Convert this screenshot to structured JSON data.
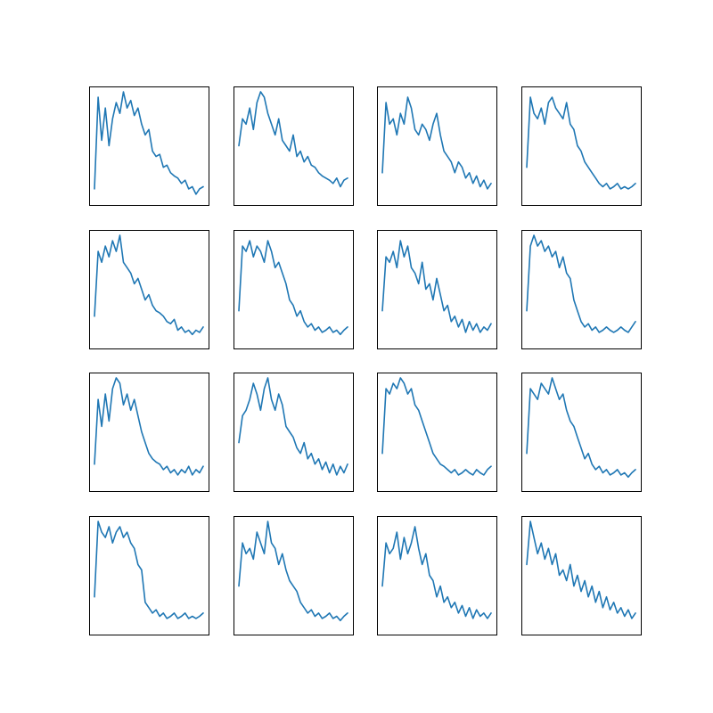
{
  "figure": {
    "background": "#ffffff",
    "line_color": "#1f77b4"
  },
  "chart_data": [
    {
      "type": "line",
      "x": [
        0,
        5,
        10,
        15,
        20,
        25,
        30,
        35,
        40,
        45,
        50,
        55,
        60,
        65,
        70,
        75,
        80,
        85,
        90,
        95,
        100,
        105,
        110,
        115,
        120,
        125,
        130,
        135,
        140,
        145,
        150
      ],
      "series": [
        {
          "values": [
            0.1,
            0.95,
            0.55,
            0.85,
            0.5,
            0.75,
            0.9,
            0.8,
            1.0,
            0.85,
            0.92,
            0.78,
            0.85,
            0.7,
            0.6,
            0.65,
            0.45,
            0.4,
            0.42,
            0.3,
            0.32,
            0.25,
            0.22,
            0.2,
            0.15,
            0.18,
            0.1,
            0.12,
            0.05,
            0.1,
            0.12
          ]
        }
      ],
      "xlim": [
        0,
        150
      ],
      "ylim": [
        0,
        1
      ],
      "grid": false
    },
    {
      "type": "line",
      "x": [
        0,
        5,
        10,
        15,
        20,
        25,
        30,
        35,
        40,
        45,
        50,
        55,
        60,
        65,
        70,
        75,
        80,
        85,
        90,
        95,
        100,
        105,
        110,
        115,
        120,
        125,
        130,
        135,
        140,
        145,
        150
      ],
      "series": [
        {
          "values": [
            0.5,
            0.75,
            0.7,
            0.85,
            0.65,
            0.9,
            1.0,
            0.95,
            0.8,
            0.7,
            0.6,
            0.75,
            0.55,
            0.5,
            0.45,
            0.6,
            0.4,
            0.45,
            0.35,
            0.4,
            0.32,
            0.3,
            0.25,
            0.22,
            0.2,
            0.18,
            0.15,
            0.2,
            0.12,
            0.18,
            0.2
          ]
        }
      ],
      "xlim": [
        0,
        150
      ],
      "ylim": [
        0,
        1
      ],
      "grid": false
    },
    {
      "type": "line",
      "x": [
        0,
        5,
        10,
        15,
        20,
        25,
        30,
        35,
        40,
        45,
        50,
        55,
        60,
        65,
        70,
        75,
        80,
        85,
        90,
        95,
        100,
        105,
        110,
        115,
        120,
        125,
        130,
        135,
        140,
        145,
        150
      ],
      "series": [
        {
          "values": [
            0.25,
            0.9,
            0.7,
            0.75,
            0.6,
            0.8,
            0.7,
            0.95,
            0.85,
            0.65,
            0.6,
            0.7,
            0.65,
            0.55,
            0.7,
            0.8,
            0.6,
            0.45,
            0.4,
            0.35,
            0.25,
            0.35,
            0.3,
            0.2,
            0.25,
            0.15,
            0.22,
            0.12,
            0.18,
            0.1,
            0.15
          ]
        }
      ],
      "xlim": [
        0,
        150
      ],
      "ylim": [
        0,
        1
      ],
      "grid": false
    },
    {
      "type": "line",
      "x": [
        0,
        5,
        10,
        15,
        20,
        25,
        30,
        35,
        40,
        45,
        50,
        55,
        60,
        65,
        70,
        75,
        80,
        85,
        90,
        95,
        100,
        105,
        110,
        115,
        120,
        125,
        130,
        135,
        140,
        145,
        150
      ],
      "series": [
        {
          "values": [
            0.3,
            0.95,
            0.8,
            0.75,
            0.85,
            0.7,
            0.9,
            0.95,
            0.85,
            0.8,
            0.75,
            0.9,
            0.7,
            0.65,
            0.5,
            0.45,
            0.35,
            0.3,
            0.25,
            0.2,
            0.15,
            0.12,
            0.15,
            0.1,
            0.12,
            0.15,
            0.1,
            0.12,
            0.1,
            0.12,
            0.15
          ]
        }
      ],
      "xlim": [
        0,
        150
      ],
      "ylim": [
        0,
        1
      ],
      "grid": false
    },
    {
      "type": "line",
      "x": [
        0,
        5,
        10,
        15,
        20,
        25,
        30,
        35,
        40,
        45,
        50,
        55,
        60,
        65,
        70,
        75,
        80,
        85,
        90,
        95,
        100,
        105,
        110,
        115,
        120,
        125,
        130,
        135,
        140,
        145,
        150
      ],
      "series": [
        {
          "values": [
            0.25,
            0.85,
            0.75,
            0.9,
            0.8,
            0.95,
            0.85,
            1.0,
            0.75,
            0.7,
            0.65,
            0.55,
            0.6,
            0.5,
            0.4,
            0.45,
            0.35,
            0.3,
            0.28,
            0.25,
            0.2,
            0.18,
            0.22,
            0.12,
            0.15,
            0.1,
            0.12,
            0.08,
            0.12,
            0.1,
            0.15
          ]
        }
      ],
      "xlim": [
        0,
        150
      ],
      "ylim": [
        0,
        1
      ],
      "grid": false
    },
    {
      "type": "line",
      "x": [
        0,
        5,
        10,
        15,
        20,
        25,
        30,
        35,
        40,
        45,
        50,
        55,
        60,
        65,
        70,
        75,
        80,
        85,
        90,
        95,
        100,
        105,
        110,
        115,
        120,
        125,
        130,
        135,
        140,
        145,
        150
      ],
      "series": [
        {
          "values": [
            0.3,
            0.9,
            0.85,
            0.95,
            0.8,
            0.9,
            0.85,
            0.75,
            0.95,
            0.85,
            0.7,
            0.75,
            0.65,
            0.55,
            0.4,
            0.35,
            0.25,
            0.3,
            0.2,
            0.15,
            0.18,
            0.12,
            0.15,
            0.1,
            0.12,
            0.15,
            0.1,
            0.12,
            0.08,
            0.12,
            0.15
          ]
        }
      ],
      "xlim": [
        0,
        150
      ],
      "ylim": [
        0,
        1
      ],
      "grid": false
    },
    {
      "type": "line",
      "x": [
        0,
        5,
        10,
        15,
        20,
        25,
        30,
        35,
        40,
        45,
        50,
        55,
        60,
        65,
        70,
        75,
        80,
        85,
        90,
        95,
        100,
        105,
        110,
        115,
        120,
        125,
        130,
        135,
        140,
        145,
        150
      ],
      "series": [
        {
          "values": [
            0.3,
            0.8,
            0.75,
            0.85,
            0.7,
            0.95,
            0.8,
            0.9,
            0.7,
            0.65,
            0.55,
            0.75,
            0.5,
            0.55,
            0.4,
            0.6,
            0.45,
            0.3,
            0.35,
            0.2,
            0.25,
            0.15,
            0.22,
            0.1,
            0.2,
            0.12,
            0.18,
            0.1,
            0.15,
            0.12,
            0.18
          ]
        }
      ],
      "xlim": [
        0,
        150
      ],
      "ylim": [
        0,
        1
      ],
      "grid": false
    },
    {
      "type": "line",
      "x": [
        0,
        5,
        10,
        15,
        20,
        25,
        30,
        35,
        40,
        45,
        50,
        55,
        60,
        65,
        70,
        75,
        80,
        85,
        90,
        95,
        100,
        105,
        110,
        115,
        120,
        125,
        130,
        135,
        140,
        145,
        150
      ],
      "series": [
        {
          "values": [
            0.3,
            0.9,
            1.0,
            0.9,
            0.95,
            0.85,
            0.9,
            0.8,
            0.85,
            0.7,
            0.8,
            0.65,
            0.6,
            0.4,
            0.3,
            0.2,
            0.15,
            0.18,
            0.12,
            0.15,
            0.1,
            0.12,
            0.15,
            0.12,
            0.1,
            0.12,
            0.15,
            0.12,
            0.1,
            0.15,
            0.2
          ]
        }
      ],
      "xlim": [
        0,
        150
      ],
      "ylim": [
        0,
        1
      ],
      "grid": false
    },
    {
      "type": "line",
      "x": [
        0,
        5,
        10,
        15,
        20,
        25,
        30,
        35,
        40,
        45,
        50,
        55,
        60,
        65,
        70,
        75,
        80,
        85,
        90,
        95,
        100,
        105,
        110,
        115,
        120,
        125,
        130,
        135,
        140,
        145,
        150
      ],
      "series": [
        {
          "values": [
            0.2,
            0.8,
            0.55,
            0.85,
            0.6,
            0.9,
            1.0,
            0.95,
            0.75,
            0.85,
            0.7,
            0.8,
            0.65,
            0.5,
            0.4,
            0.3,
            0.25,
            0.22,
            0.2,
            0.15,
            0.18,
            0.12,
            0.15,
            0.1,
            0.15,
            0.12,
            0.18,
            0.1,
            0.15,
            0.12,
            0.18
          ]
        }
      ],
      "xlim": [
        0,
        150
      ],
      "ylim": [
        0,
        1
      ],
      "grid": false
    },
    {
      "type": "line",
      "x": [
        0,
        5,
        10,
        15,
        20,
        25,
        30,
        35,
        40,
        45,
        50,
        55,
        60,
        65,
        70,
        75,
        80,
        85,
        90,
        95,
        100,
        105,
        110,
        115,
        120,
        125,
        130,
        135,
        140,
        145,
        150
      ],
      "series": [
        {
          "values": [
            0.4,
            0.65,
            0.7,
            0.8,
            0.95,
            0.85,
            0.7,
            0.9,
            1.0,
            0.8,
            0.7,
            0.85,
            0.75,
            0.55,
            0.5,
            0.45,
            0.35,
            0.3,
            0.4,
            0.25,
            0.3,
            0.2,
            0.25,
            0.15,
            0.22,
            0.12,
            0.2,
            0.1,
            0.18,
            0.12,
            0.2
          ]
        }
      ],
      "xlim": [
        0,
        150
      ],
      "ylim": [
        0,
        1
      ],
      "grid": false
    },
    {
      "type": "line",
      "x": [
        0,
        5,
        10,
        15,
        20,
        25,
        30,
        35,
        40,
        45,
        50,
        55,
        60,
        65,
        70,
        75,
        80,
        85,
        90,
        95,
        100,
        105,
        110,
        115,
        120,
        125,
        130,
        135,
        140,
        145,
        150
      ],
      "series": [
        {
          "values": [
            0.3,
            0.9,
            0.85,
            0.95,
            0.9,
            1.0,
            0.95,
            0.85,
            0.9,
            0.75,
            0.7,
            0.6,
            0.5,
            0.4,
            0.3,
            0.25,
            0.2,
            0.18,
            0.15,
            0.12,
            0.15,
            0.1,
            0.12,
            0.15,
            0.12,
            0.1,
            0.15,
            0.12,
            0.1,
            0.15,
            0.18
          ]
        }
      ],
      "xlim": [
        0,
        150
      ],
      "ylim": [
        0,
        1
      ],
      "grid": false
    },
    {
      "type": "line",
      "x": [
        0,
        5,
        10,
        15,
        20,
        25,
        30,
        35,
        40,
        45,
        50,
        55,
        60,
        65,
        70,
        75,
        80,
        85,
        90,
        95,
        100,
        105,
        110,
        115,
        120,
        125,
        130,
        135,
        140,
        145,
        150
      ],
      "series": [
        {
          "values": [
            0.3,
            0.9,
            0.85,
            0.8,
            0.95,
            0.9,
            0.85,
            1.0,
            0.9,
            0.8,
            0.85,
            0.7,
            0.6,
            0.55,
            0.45,
            0.35,
            0.25,
            0.3,
            0.2,
            0.15,
            0.18,
            0.12,
            0.15,
            0.1,
            0.12,
            0.15,
            0.1,
            0.12,
            0.08,
            0.12,
            0.15
          ]
        }
      ],
      "xlim": [
        0,
        150
      ],
      "ylim": [
        0,
        1
      ],
      "grid": false
    },
    {
      "type": "line",
      "x": [
        0,
        5,
        10,
        15,
        20,
        25,
        30,
        35,
        40,
        45,
        50,
        55,
        60,
        65,
        70,
        75,
        80,
        85,
        90,
        95,
        100,
        105,
        110,
        115,
        120,
        125,
        130,
        135,
        140,
        145,
        150
      ],
      "series": [
        {
          "values": [
            0.3,
            1.0,
            0.9,
            0.85,
            0.95,
            0.8,
            0.9,
            0.95,
            0.85,
            0.9,
            0.8,
            0.75,
            0.6,
            0.55,
            0.25,
            0.2,
            0.15,
            0.18,
            0.12,
            0.15,
            0.1,
            0.12,
            0.15,
            0.1,
            0.12,
            0.15,
            0.1,
            0.12,
            0.1,
            0.12,
            0.15
          ]
        }
      ],
      "xlim": [
        0,
        150
      ],
      "ylim": [
        0,
        1
      ],
      "grid": false
    },
    {
      "type": "line",
      "x": [
        0,
        5,
        10,
        15,
        20,
        25,
        30,
        35,
        40,
        45,
        50,
        55,
        60,
        65,
        70,
        75,
        80,
        85,
        90,
        95,
        100,
        105,
        110,
        115,
        120,
        125,
        130,
        135,
        140,
        145,
        150
      ],
      "series": [
        {
          "values": [
            0.4,
            0.8,
            0.7,
            0.75,
            0.65,
            0.9,
            0.8,
            0.7,
            1.0,
            0.8,
            0.75,
            0.6,
            0.7,
            0.55,
            0.45,
            0.4,
            0.35,
            0.25,
            0.2,
            0.15,
            0.18,
            0.12,
            0.15,
            0.1,
            0.12,
            0.15,
            0.1,
            0.12,
            0.08,
            0.12,
            0.15
          ]
        }
      ],
      "xlim": [
        0,
        150
      ],
      "ylim": [
        0,
        1
      ],
      "grid": false
    },
    {
      "type": "line",
      "x": [
        0,
        5,
        10,
        15,
        20,
        25,
        30,
        35,
        40,
        45,
        50,
        55,
        60,
        65,
        70,
        75,
        80,
        85,
        90,
        95,
        100,
        105,
        110,
        115,
        120,
        125,
        130,
        135,
        140,
        145,
        150
      ],
      "series": [
        {
          "values": [
            0.4,
            0.8,
            0.7,
            0.75,
            0.9,
            0.65,
            0.85,
            0.7,
            0.8,
            0.95,
            0.75,
            0.6,
            0.7,
            0.5,
            0.45,
            0.3,
            0.4,
            0.25,
            0.3,
            0.2,
            0.25,
            0.15,
            0.22,
            0.12,
            0.2,
            0.1,
            0.18,
            0.12,
            0.15,
            0.1,
            0.15
          ]
        }
      ],
      "xlim": [
        0,
        150
      ],
      "ylim": [
        0,
        1
      ],
      "grid": false
    },
    {
      "type": "line",
      "x": [
        0,
        5,
        10,
        15,
        20,
        25,
        30,
        35,
        40,
        45,
        50,
        55,
        60,
        65,
        70,
        75,
        80,
        85,
        90,
        95,
        100,
        105,
        110,
        115,
        120,
        125,
        130,
        135,
        140,
        145,
        150
      ],
      "series": [
        {
          "values": [
            0.6,
            1.0,
            0.85,
            0.7,
            0.8,
            0.65,
            0.75,
            0.6,
            0.7,
            0.5,
            0.55,
            0.45,
            0.6,
            0.4,
            0.5,
            0.35,
            0.45,
            0.3,
            0.4,
            0.25,
            0.35,
            0.2,
            0.3,
            0.18,
            0.25,
            0.15,
            0.2,
            0.12,
            0.18,
            0.1,
            0.15
          ]
        }
      ],
      "xlim": [
        0,
        150
      ],
      "ylim": [
        0,
        1
      ],
      "grid": false
    }
  ]
}
